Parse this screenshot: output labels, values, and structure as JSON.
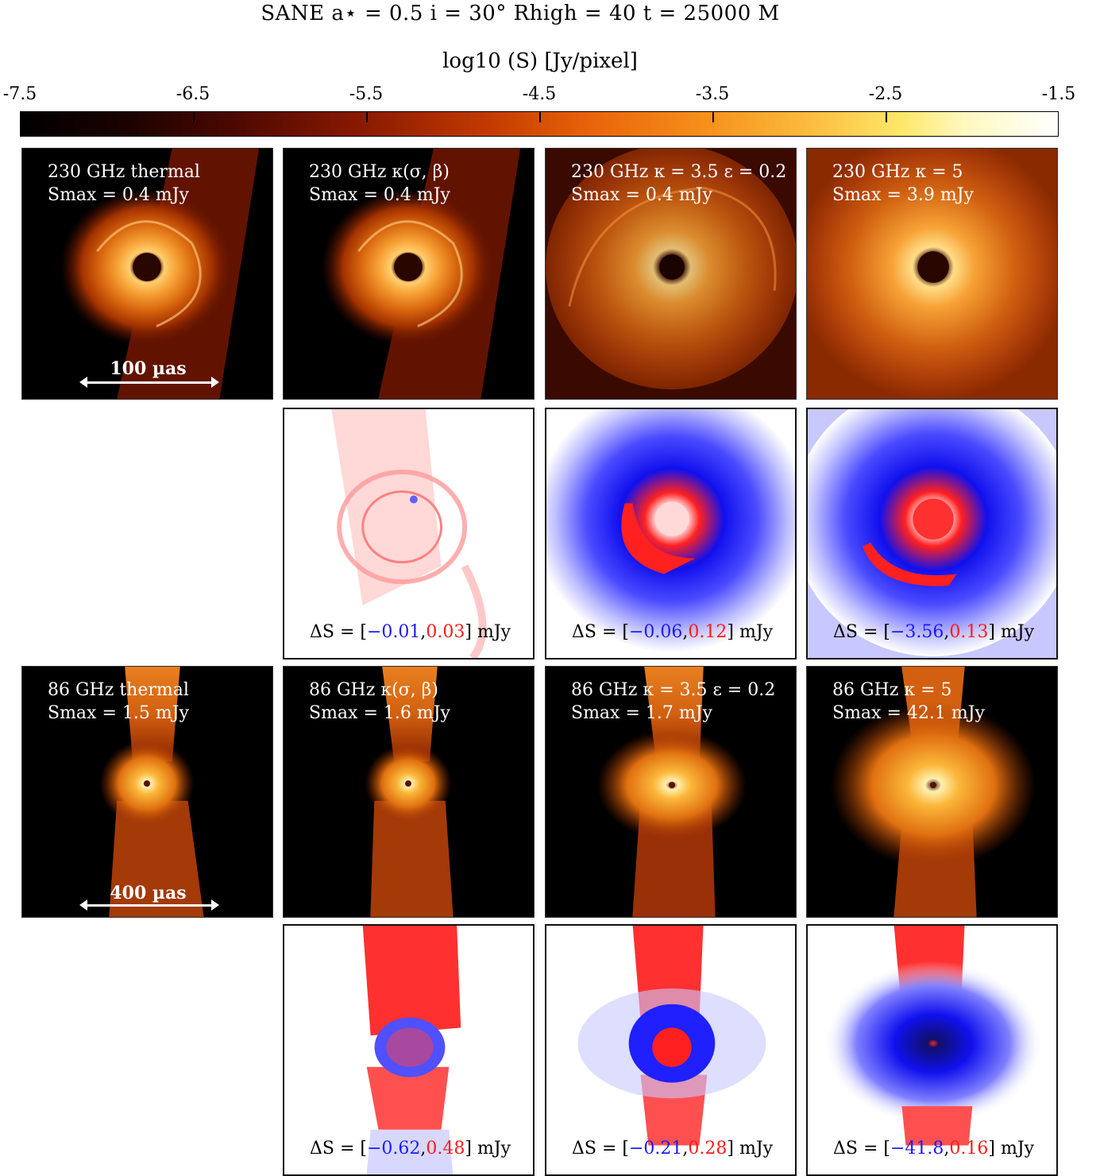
{
  "title": "SANE    a⋆ = 0.5    i = 30°    Rhigh = 40    t = 25000 M",
  "colorbar": {
    "label": "log10 (S)  [Jy/pixel]",
    "ticks": [
      "-7.5",
      "-6.5",
      "-5.5",
      "-4.5",
      "-3.5",
      "-2.5",
      "-1.5"
    ],
    "range": [
      -7.5,
      -1.5
    ],
    "colormap": "afmhot"
  },
  "rows": {
    "row230": {
      "scalebar": "100 µas",
      "panels": [
        {
          "line1": "230 GHz    thermal",
          "line2": "Smax = 0.4 mJy"
        },
        {
          "line1": "230 GHz    κ(σ, β)",
          "line2": "Smax = 0.4 mJy"
        },
        {
          "line1": "230 GHz    κ = 3.5 ε = 0.2",
          "line2": "Smax = 0.4 mJy"
        },
        {
          "line1": "230 GHz    κ = 5",
          "line2": "Smax = 3.9 mJy"
        }
      ],
      "diffs": [
        {
          "prefix": "ΔS = [",
          "neg": "−0.01",
          "sep": ",",
          "pos": "0.03",
          "suffix": "] mJy"
        },
        {
          "prefix": "ΔS = [",
          "neg": "−0.06",
          "sep": ",",
          "pos": "0.12",
          "suffix": "] mJy"
        },
        {
          "prefix": "ΔS = [",
          "neg": "−3.56",
          "sep": ",",
          "pos": "0.13",
          "suffix": "] mJy"
        }
      ]
    },
    "row86": {
      "scalebar": "400 µas",
      "panels": [
        {
          "line1": "86 GHz    thermal",
          "line2": "Smax = 1.5 mJy"
        },
        {
          "line1": "86 GHz    κ(σ, β)",
          "line2": "Smax = 1.6 mJy"
        },
        {
          "line1": "86 GHz    κ = 3.5 ε = 0.2",
          "line2": "Smax = 1.7 mJy"
        },
        {
          "line1": "86 GHz    κ = 5",
          "line2": "Smax = 42.1 mJy"
        }
      ],
      "diffs": [
        {
          "prefix": "ΔS = [",
          "neg": "−0.62",
          "sep": ",",
          "pos": "0.48",
          "suffix": "] mJy"
        },
        {
          "prefix": "ΔS = [",
          "neg": "−0.21",
          "sep": ",",
          "pos": "0.28",
          "suffix": "] mJy"
        },
        {
          "prefix": "ΔS = [",
          "neg": "−41.8",
          "sep": ",",
          "pos": "0.16",
          "suffix": "] mJy"
        }
      ]
    }
  },
  "colors": {
    "negative": "#1a1aff",
    "positive": "#ff1a1a"
  }
}
